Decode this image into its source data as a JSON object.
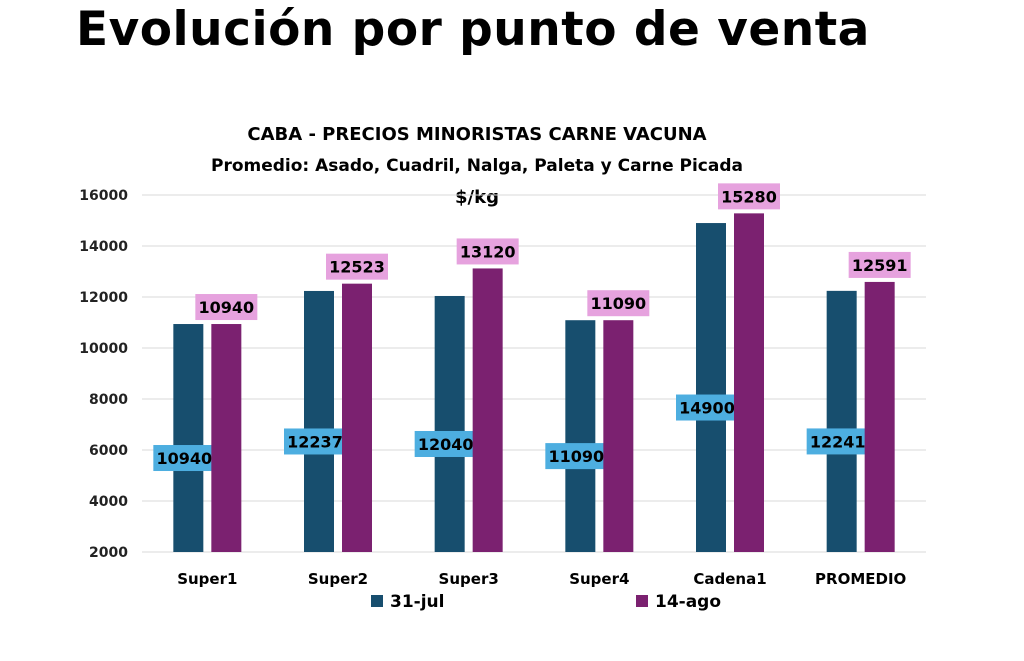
{
  "slide": {
    "title": "Evolución por punto de venta"
  },
  "colors": {
    "series1": "#174E6E",
    "series2": "#7B2170",
    "label1_bg": "#4DAEE0",
    "label2_bg": "#E6A2DE",
    "grid": "#D9D9D9"
  },
  "chart_data": {
    "type": "bar",
    "title": "CABA -  PRECIOS MINORISTAS CARNE VACUNA",
    "subtitle": "Promedio: Asado, Cuadril, Nalga, Paleta y Carne Picada",
    "ylabel": "$/kg",
    "xlabel": "",
    "categories": [
      "Super1",
      "Super2",
      "Super3",
      "Super4",
      "Cadena1",
      "PROMEDIO"
    ],
    "series": [
      {
        "name": "31-jul",
        "values": [
          10940,
          12237,
          12040,
          11090,
          14900,
          12241
        ]
      },
      {
        "name": "14-ago",
        "values": [
          10940,
          12523,
          13120,
          11090,
          15280,
          12591
        ]
      }
    ],
    "ylim": [
      2000,
      16000
    ],
    "yticks": [
      2000,
      4000,
      6000,
      8000,
      10000,
      12000,
      14000,
      16000
    ],
    "grid": true,
    "legend_position": "bottom"
  }
}
